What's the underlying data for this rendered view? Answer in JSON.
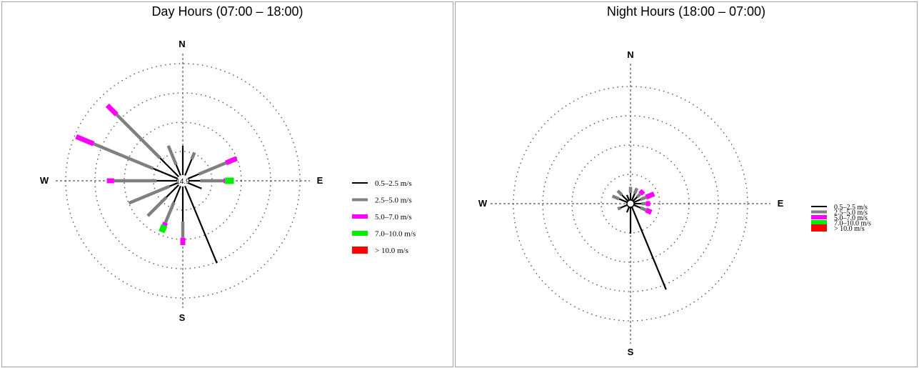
{
  "colors": {
    "bin1": "#000000",
    "bin2": "#808080",
    "bin3": "#ff00ff",
    "bin4": "#00ee00",
    "bin5": "#ff0000",
    "grid": "#555555",
    "panel_border": "#a0a0a0"
  },
  "directions": {
    "n": "N",
    "s": "S",
    "e": "E",
    "w": "W"
  },
  "legend": [
    {
      "label": "0.5–2.5 m/s",
      "color": "#000000"
    },
    {
      "label": "2.5–5.0 m/s",
      "color": "#808080"
    },
    {
      "label": "5.0–7.0 m/s",
      "color": "#ff00ff"
    },
    {
      "label": "7.0–10.0 m/s",
      "color": "#00ee00"
    },
    {
      "label": "> 10.0 m/s",
      "color": "#ff0000"
    }
  ],
  "chart_data": [
    {
      "type": "wind-rose",
      "title": "Day Hours (07:00 – 18:00)",
      "center_label": "14.9",
      "rings": 4,
      "legend_position": "right",
      "bins": [
        "0.5–2.5 m/s",
        "2.5–5.0 m/s",
        "5.0–7.0 m/s",
        "7.0–10.0 m/s",
        "> 10.0 m/s"
      ],
      "petals": [
        {
          "dir": 0,
          "segments": [
            1.0
          ]
        },
        {
          "dir": 22.5,
          "segments": [
            0.6,
            0.25
          ]
        },
        {
          "dir": 67.5,
          "segments": [
            0.4,
            1.0,
            0.4
          ]
        },
        {
          "dir": 90,
          "segments": [
            0.4,
            0.8,
            0.05,
            0.3
          ]
        },
        {
          "dir": 112.5,
          "segments": [
            0.5
          ]
        },
        {
          "dir": 157.5,
          "segments": [
            2.85
          ]
        },
        {
          "dir": 180,
          "segments": [
            1.2,
            0.55,
            0.25
          ]
        },
        {
          "dir": 202.5,
          "segments": [
            0.6,
            0.75,
            0.1,
            0.25
          ]
        },
        {
          "dir": 225,
          "segments": [
            0.6,
            0.9
          ]
        },
        {
          "dir": 247.5,
          "segments": [
            0.3,
            1.5
          ]
        },
        {
          "dir": 270,
          "segments": [
            0.7,
            1.45,
            0.25
          ]
        },
        {
          "dir": 292.5,
          "segments": [
            0.9,
            2.2,
            0.65
          ]
        },
        {
          "dir": 315,
          "segments": [
            0.9,
            2.1,
            0.45
          ]
        },
        {
          "dir": 337.5,
          "segments": [
            0.4,
            0.7
          ]
        }
      ]
    },
    {
      "type": "wind-rose",
      "title": "Night Hours (18:00 – 07:00)",
      "center_label": "",
      "rings": 4,
      "legend_position": "right",
      "bins": [
        "0.5–2.5 m/s",
        "2.5–5.0 m/s",
        "5.0–7.0 m/s",
        "7.0–10.0 m/s",
        "> 10.0 m/s"
      ],
      "petals": [
        {
          "dir": 0,
          "segments": [
            0.25,
            0.2
          ]
        },
        {
          "dir": 22.5,
          "segments": [
            0.25,
            0.2
          ]
        },
        {
          "dir": 45,
          "segments": [
            0.2,
            0.15,
            0.15
          ]
        },
        {
          "dir": 67.5,
          "segments": [
            0.25,
            0.2,
            0.3
          ]
        },
        {
          "dir": 90,
          "segments": [
            0.25,
            0.15,
            0.15
          ]
        },
        {
          "dir": 112.5,
          "segments": [
            0.25,
            0.2,
            0.2
          ]
        },
        {
          "dir": 157.5,
          "segments": [
            3.05
          ]
        },
        {
          "dir": 180,
          "segments": [
            0.9
          ]
        },
        {
          "dir": 202.5,
          "segments": [
            0.2
          ]
        },
        {
          "dir": 247.5,
          "segments": [
            0.25,
            0.1
          ]
        },
        {
          "dir": 292.5,
          "segments": [
            0.3,
            0.25
          ]
        },
        {
          "dir": 315,
          "segments": [
            0.3,
            0.2
          ]
        },
        {
          "dir": 337.5,
          "segments": [
            0.2
          ]
        }
      ]
    }
  ]
}
